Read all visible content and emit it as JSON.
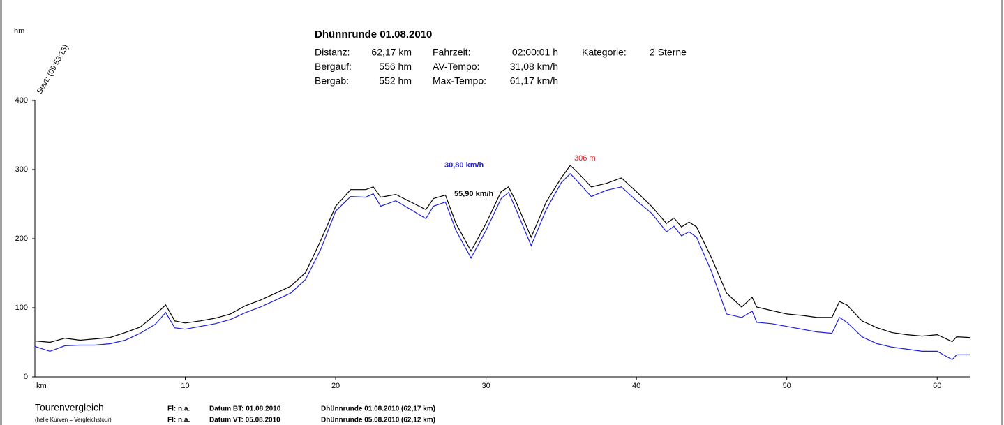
{
  "chart_data": {
    "type": "line",
    "title": "Dhünnrunde 01.08.2010",
    "stats": [
      [
        "Distanz:",
        "62,17 km",
        "Fahrzeit:",
        "02:00:01 h",
        "Kategorie:",
        "2 Sterne"
      ],
      [
        "Bergauf:",
        "556 hm",
        "AV-Tempo:",
        "31,08 km/h"
      ],
      [
        "Bergab:",
        "552 hm",
        "Max-Tempo:",
        "61,17 km/h"
      ]
    ],
    "y_label": "hm",
    "x_label": "km",
    "start_label": "Start: (09:53:15)",
    "annotations": {
      "max_height": "306 m",
      "avg_speed": "30,80 km/h",
      "max_speed": "55,90 km/h"
    },
    "x": [
      0,
      1,
      2,
      3,
      4,
      5,
      6,
      7,
      8,
      8.7,
      9.3,
      10,
      11,
      12,
      13,
      14,
      15,
      16,
      17,
      18,
      19,
      20,
      21,
      22,
      22.5,
      23,
      24,
      25,
      26,
      26.5,
      27.3,
      28,
      29,
      30,
      31,
      31.5,
      32,
      33,
      34,
      35,
      35.6,
      36,
      37,
      38,
      39,
      40,
      41,
      42,
      42.5,
      43,
      43.5,
      44,
      45,
      46,
      47,
      47.7,
      48,
      49,
      50,
      51,
      52,
      53,
      53.5,
      54,
      55,
      56,
      57,
      58,
      59,
      60,
      61,
      61.3,
      62.17
    ],
    "series": [
      {
        "color": "#000000",
        "values": [
          52,
          50,
          56,
          53,
          55,
          57,
          64,
          72,
          90,
          104,
          81,
          78,
          81,
          85,
          91,
          103,
          111,
          121,
          131,
          151,
          197,
          247,
          271,
          271,
          275,
          260,
          264,
          253,
          242,
          258,
          263,
          222,
          182,
          222,
          268,
          275,
          253,
          202,
          253,
          288,
          306,
          298,
          275,
          280,
          288,
          268,
          247,
          222,
          230,
          217,
          224,
          217,
          172,
          121,
          101,
          115,
          101,
          96,
          91,
          89,
          86,
          86,
          109,
          104,
          81,
          71,
          64,
          61,
          59,
          61,
          51,
          58,
          57
        ]
      },
      {
        "color": "#1f1fd8",
        "values": [
          44,
          37,
          45,
          46,
          46,
          48,
          53,
          63,
          76,
          93,
          71,
          69,
          73,
          77,
          83,
          93,
          101,
          111,
          121,
          141,
          184,
          240,
          261,
          260,
          265,
          247,
          255,
          242,
          229,
          247,
          253,
          212,
          172,
          212,
          258,
          267,
          242,
          190,
          242,
          281,
          294,
          285,
          261,
          270,
          275,
          255,
          237,
          210,
          218,
          204,
          210,
          202,
          152,
          91,
          86,
          95,
          79,
          77,
          73,
          69,
          65,
          63,
          86,
          79,
          58,
          48,
          43,
          40,
          37,
          37,
          25,
          32,
          32
        ]
      }
    ],
    "xlim": [
      0,
      62.17
    ],
    "ylim": [
      0,
      400
    ],
    "xticks": [
      10,
      20,
      30,
      40,
      50,
      60
    ],
    "yticks": [
      0,
      100,
      200,
      300,
      400
    ],
    "footer": {
      "title": "Tourenvergleich",
      "subtitle": "(helle Kurven = Vergleichstour)",
      "rows": [
        [
          "Fl: n.a.",
          "Datum BT: 01.08.2010",
          "Dhünnrunde 01.08.2010  (62,17 km)"
        ],
        [
          "Fl: n.a.",
          "Datum VT: 05.08.2010",
          "Dhünnrunde 05.08.2010  (62,12 km)"
        ]
      ]
    }
  }
}
